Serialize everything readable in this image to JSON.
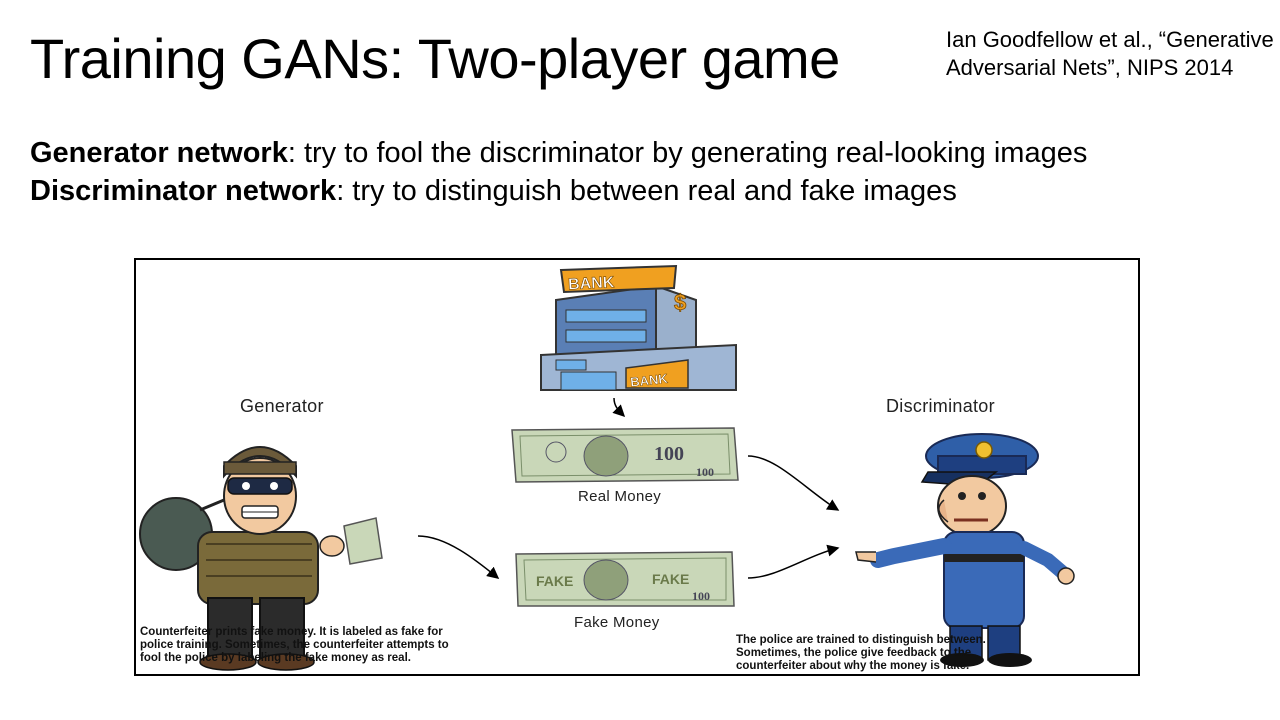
{
  "slide": {
    "title": "Training GANs: Two-player game",
    "citation_line1": "Ian Goodfellow et al., “Generative",
    "citation_line2": "Adversarial Nets”, NIPS 2014",
    "bullets": [
      {
        "term": "Generator network",
        "text": ": try to fool the discriminator by generating real-looking images"
      },
      {
        "term": "Discriminator network",
        "text": ": try to distinguish between real and fake images"
      }
    ]
  },
  "figure": {
    "generator_label": "Generator",
    "discriminator_label": "Discriminator",
    "real_money_label": "Real Money",
    "fake_money_label": "Fake Money",
    "bank_sign": "BANK",
    "bank_sign_lower": "BANK",
    "dollar_sign": "$",
    "note_value": "100",
    "fake_stamp": "FAKE",
    "counterfeiter_caption": [
      "Counterfeiter prints fake money. It is labeled as fake for",
      "police training. Sometimes, the counterfeiter attempts to",
      "fool the police by labeling the fake money as real."
    ],
    "police_caption": [
      "The police are trained to distinguish between.",
      "Sometimes, the police give feedback to the",
      "counterfeiter about why the money is fake."
    ]
  },
  "colors": {
    "bank_blue": "#4a6fa5",
    "bank_sign": "#f0a020",
    "money_green": "#c9d7b8",
    "police_blue": "#2f5fa8",
    "thief_beanie": "#6b5a3a"
  }
}
